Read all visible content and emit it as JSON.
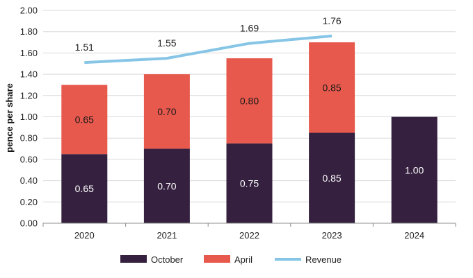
{
  "chart_data": {
    "type": "bar",
    "stacked": true,
    "categories": [
      "2020",
      "2021",
      "2022",
      "2023",
      "2024"
    ],
    "series": [
      {
        "name": "October",
        "kind": "bar",
        "color": "#35213f",
        "label_color": "#ffffff",
        "values": [
          0.65,
          0.7,
          0.75,
          0.85,
          1.0
        ],
        "labels": [
          "0.65",
          "0.70",
          "0.75",
          "0.85",
          "1.00"
        ]
      },
      {
        "name": "April",
        "kind": "bar",
        "color": "#e8594d",
        "label_color": "#1a1a1a",
        "values": [
          0.65,
          0.7,
          0.8,
          0.85,
          null
        ],
        "labels": [
          "0.65",
          "0.70",
          "0.80",
          "0.85",
          ""
        ]
      },
      {
        "name": "Revenue",
        "kind": "line",
        "color": "#86c5e6",
        "label_color": "#222222",
        "values": [
          1.51,
          1.55,
          1.69,
          1.76,
          null
        ],
        "labels": [
          "1.51",
          "1.55",
          "1.69",
          "1.76",
          ""
        ]
      }
    ],
    "ylabel": "pence per share",
    "xlabel": "",
    "ylim": [
      0,
      2.0
    ],
    "yticks": [
      "0.00",
      "0.20",
      "0.40",
      "0.60",
      "0.80",
      "1.00",
      "1.20",
      "1.40",
      "1.60",
      "1.80",
      "2.00"
    ],
    "grid": true,
    "legend": "bottom"
  }
}
